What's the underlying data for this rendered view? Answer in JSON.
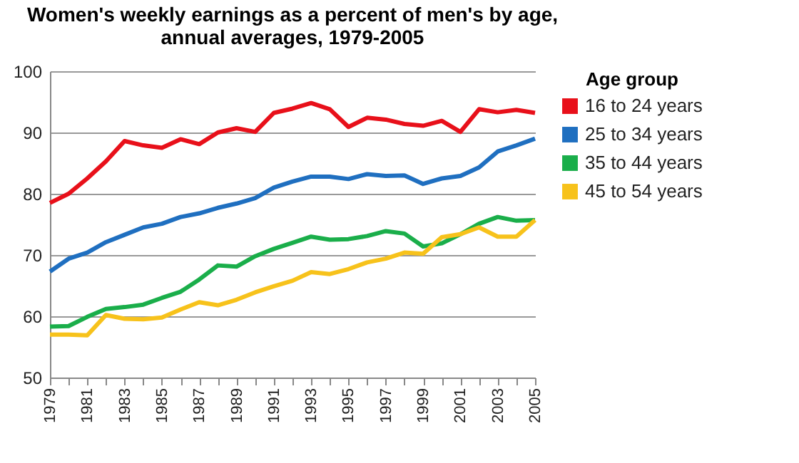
{
  "chart_data": {
    "type": "line",
    "title": [
      "Women's weekly earnings as a percent of men's by age,",
      "annual averages, 1979-2005"
    ],
    "legend_title": "Age group",
    "legend": "right",
    "grid": "y",
    "marker": "none",
    "line_style": "solid",
    "x": [
      1979,
      1980,
      1981,
      1982,
      1983,
      1984,
      1985,
      1986,
      1987,
      1988,
      1989,
      1990,
      1991,
      1992,
      1993,
      1994,
      1995,
      1996,
      1997,
      1998,
      1999,
      2000,
      2001,
      2002,
      2003,
      2004,
      2005
    ],
    "xlim": [
      1979,
      2005
    ],
    "xticks": [
      1979,
      {
        "value": 1980,
        "label": null
      },
      1981,
      {
        "value": 1982,
        "label": null
      },
      1983,
      {
        "value": 1984,
        "label": null
      },
      1985,
      {
        "value": 1986,
        "label": null
      },
      1987,
      {
        "value": 1988,
        "label": null
      },
      1989,
      {
        "value": 1990,
        "label": null
      },
      1991,
      {
        "value": 1992,
        "label": null
      },
      1993,
      {
        "value": 1994,
        "label": null
      },
      1995,
      {
        "value": 1996,
        "label": null
      },
      1997,
      {
        "value": 1998,
        "label": null
      },
      1999,
      {
        "value": 2000,
        "label": null
      },
      2001,
      {
        "value": 2002,
        "label": null
      },
      2003,
      {
        "value": 2004,
        "label": null
      },
      2005
    ],
    "ylim": [
      50,
      100
    ],
    "yticks": [
      50,
      60,
      70,
      80,
      90,
      100
    ],
    "series": [
      {
        "name": "16 to 24 years",
        "color": "#e8101a",
        "values": [
          78.5,
          80.0,
          82.5,
          85.3,
          88.6,
          87.9,
          87.5,
          88.9,
          88.1,
          90.0,
          90.7,
          90.1,
          93.2,
          93.9,
          94.8,
          93.8,
          90.9,
          92.4,
          92.1,
          91.4,
          91.1,
          91.9,
          90.1,
          93.8,
          93.3,
          93.7,
          93.2
        ]
      },
      {
        "name": "25 to 34 years",
        "color": "#1f6fc0",
        "values": [
          67.3,
          69.4,
          70.4,
          72.1,
          73.3,
          74.5,
          75.1,
          76.2,
          76.8,
          77.7,
          78.4,
          79.3,
          81.0,
          82.0,
          82.8,
          82.8,
          82.4,
          83.2,
          82.9,
          83.0,
          81.6,
          82.5,
          82.9,
          84.3,
          86.9,
          87.9,
          89.0
        ]
      },
      {
        "name": "35 to 44 years",
        "color": "#1aae4a",
        "values": [
          58.3,
          58.4,
          59.9,
          61.2,
          61.5,
          61.9,
          63.0,
          64.0,
          66.0,
          68.3,
          68.1,
          69.8,
          71.0,
          72.0,
          73.0,
          72.5,
          72.6,
          73.1,
          73.9,
          73.5,
          71.4,
          71.9,
          73.4,
          75.1,
          76.2,
          75.6,
          75.7
        ]
      },
      {
        "name": "45 to 54 years",
        "color": "#f7c21b",
        "values": [
          57.0,
          57.0,
          56.9,
          60.2,
          59.6,
          59.5,
          59.8,
          61.1,
          62.3,
          61.8,
          62.7,
          63.9,
          64.9,
          65.8,
          67.2,
          66.9,
          67.7,
          68.8,
          69.4,
          70.4,
          70.2,
          72.9,
          73.4,
          74.5,
          73.0,
          73.0,
          75.7
        ]
      }
    ]
  }
}
